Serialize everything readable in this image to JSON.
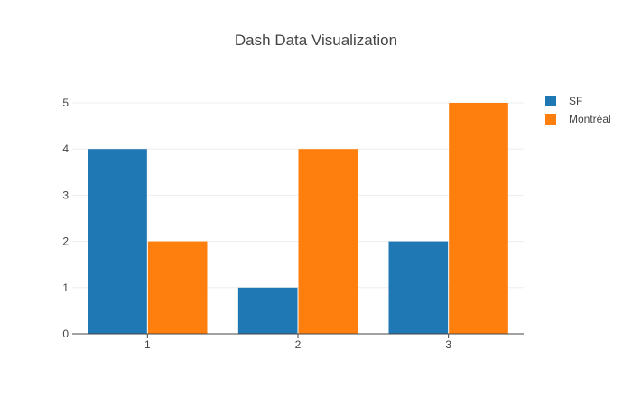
{
  "chart_data": {
    "type": "bar",
    "title": "Dash Data Visualization",
    "categories": [
      "1",
      "2",
      "3"
    ],
    "series": [
      {
        "name": "SF",
        "values": [
          4,
          1,
          2
        ],
        "color": "#1f77b4"
      },
      {
        "name": "Montréal",
        "values": [
          2,
          4,
          5
        ],
        "color": "#ff7f0e"
      }
    ],
    "xlabel": "",
    "ylabel": "",
    "ylim": [
      0,
      5
    ],
    "yticks": [
      "0",
      "1",
      "2",
      "3",
      "4",
      "5"
    ],
    "grid": true,
    "gridline_color": "#eeeeee",
    "axis_line_color": "#444444",
    "legend_position": "top-right"
  }
}
